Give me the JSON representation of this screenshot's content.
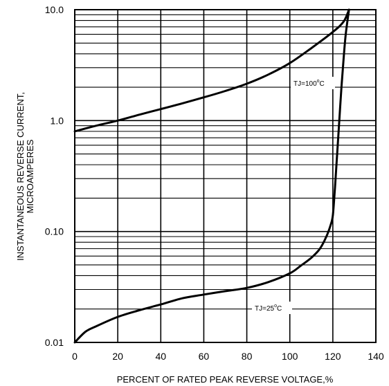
{
  "chart_data": {
    "type": "line",
    "title": "",
    "xlabel": "PERCENT OF RATED PEAK REVERSE VOLTAGE,%",
    "ylabel_lines": [
      "INSTANTANEOUS REVERSE CURRENT,",
      "MICROAMPERES"
    ],
    "x_scale": "linear",
    "y_scale": "log",
    "xlim": [
      0,
      140
    ],
    "ylim": [
      0.01,
      10
    ],
    "x_ticks": [
      0,
      20,
      40,
      60,
      80,
      100,
      120,
      140
    ],
    "x_tick_labels": [
      "0",
      "20",
      "40",
      "60",
      "80",
      "100",
      "120",
      "140"
    ],
    "y_ticks": [
      0.01,
      0.1,
      1,
      10
    ],
    "y_tick_labels": [
      "0.01",
      "0.10",
      "1.0",
      "10.0"
    ],
    "grid": true,
    "series": [
      {
        "name": "TJ=100°C",
        "label_base": "TJ=100",
        "label_unit": "C",
        "label_degree": "o",
        "x": [
          0,
          10,
          20,
          30,
          40,
          50,
          60,
          70,
          80,
          90,
          100,
          110,
          120,
          125,
          127.5
        ],
        "y": [
          0.8,
          0.9,
          1.0,
          1.13,
          1.27,
          1.43,
          1.62,
          1.85,
          2.15,
          2.6,
          3.3,
          4.5,
          6.3,
          7.8,
          10
        ]
      },
      {
        "name": "TJ=25°C",
        "label_base": "TJ=25",
        "label_unit": "C",
        "label_degree": "o",
        "x": [
          0,
          5,
          10,
          20,
          30,
          40,
          50,
          60,
          70,
          80,
          90,
          100,
          105,
          110,
          114,
          117,
          119,
          120,
          121,
          122,
          123,
          124,
          125,
          126,
          127.5
        ],
        "y": [
          0.01,
          0.0125,
          0.014,
          0.017,
          0.0195,
          0.022,
          0.025,
          0.027,
          0.029,
          0.031,
          0.035,
          0.042,
          0.049,
          0.058,
          0.07,
          0.09,
          0.115,
          0.14,
          0.25,
          0.5,
          1.0,
          2.0,
          3.6,
          6.0,
          10
        ]
      }
    ]
  }
}
